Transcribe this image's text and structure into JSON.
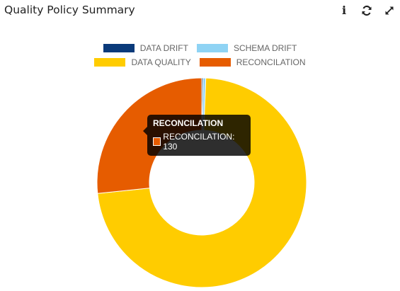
{
  "header": {
    "title": "Quality Policy Summary",
    "icons": [
      "info-icon",
      "refresh-icon",
      "expand-icon"
    ]
  },
  "chart_data": {
    "type": "pie",
    "variant": "doughnut",
    "categories": [
      "DATA DRIFT",
      "SCHEMA DRIFT",
      "DATA QUALITY",
      "RECONCILATION"
    ],
    "values": [
      1,
      2,
      355,
      130
    ],
    "colors": [
      "#0a3a7a",
      "#8fd3f4",
      "#ffcc00",
      "#e65c00"
    ],
    "legend_position": "top",
    "tooltip": {
      "title": "RECONCILATION",
      "label": "RECONCILATION: 130",
      "color": "#e65c00"
    }
  }
}
